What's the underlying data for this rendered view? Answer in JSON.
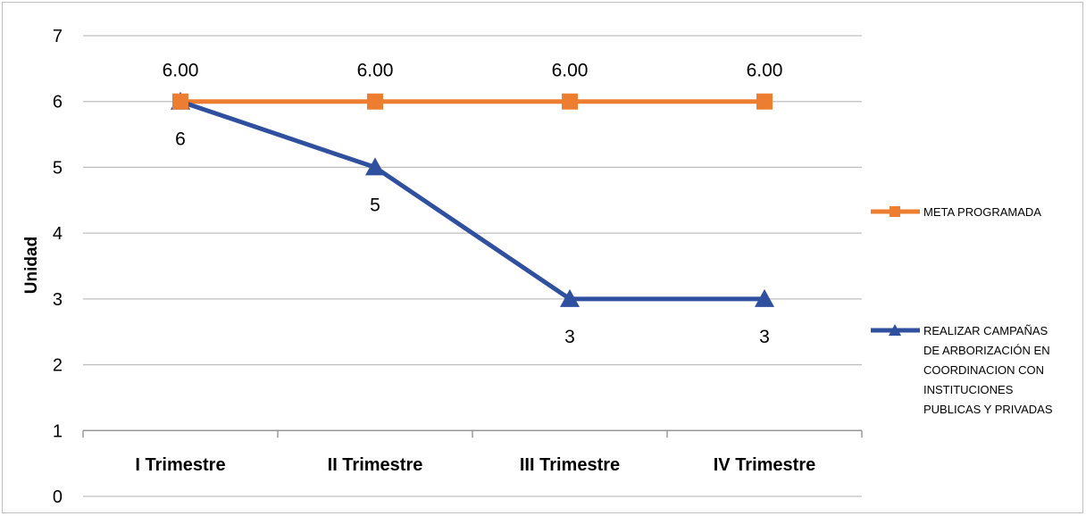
{
  "chart_data": {
    "type": "line",
    "title": "",
    "xlabel": "",
    "ylabel": "Unidad",
    "ylim": [
      0,
      7
    ],
    "yticks": [
      "0",
      "1",
      "2",
      "3",
      "4",
      "5",
      "6",
      "7"
    ],
    "categories": [
      "I Trimestre",
      "II Trimestre",
      "III Trimestre",
      "IV Trimestre"
    ],
    "grid": true,
    "legend_position": "right",
    "series": [
      {
        "name": "META PROGRAMADA",
        "legend_lines": [
          "META PROGRAMADA"
        ],
        "values": [
          6,
          6,
          6,
          6
        ],
        "labels": [
          "6.00",
          "6.00",
          "6.00",
          "6.00"
        ],
        "color": "#ED7D31",
        "marker": "square"
      },
      {
        "name": "REALIZAR CAMPAÑAS DE ARBORIZACIÓN EN COORDINACION CON INSTITUCIONES PUBLICAS Y PRIVADAS",
        "legend_lines": [
          "REALIZAR CAMPAÑAS",
          "DE ARBORIZACIÓN EN",
          "COORDINACION CON",
          "INSTITUCIONES",
          "PUBLICAS Y PRIVADAS"
        ],
        "values": [
          6,
          5,
          3,
          3
        ],
        "labels": [
          "6",
          "5",
          "3",
          "3"
        ],
        "color": "#2F4F9F",
        "marker": "triangle"
      }
    ]
  }
}
